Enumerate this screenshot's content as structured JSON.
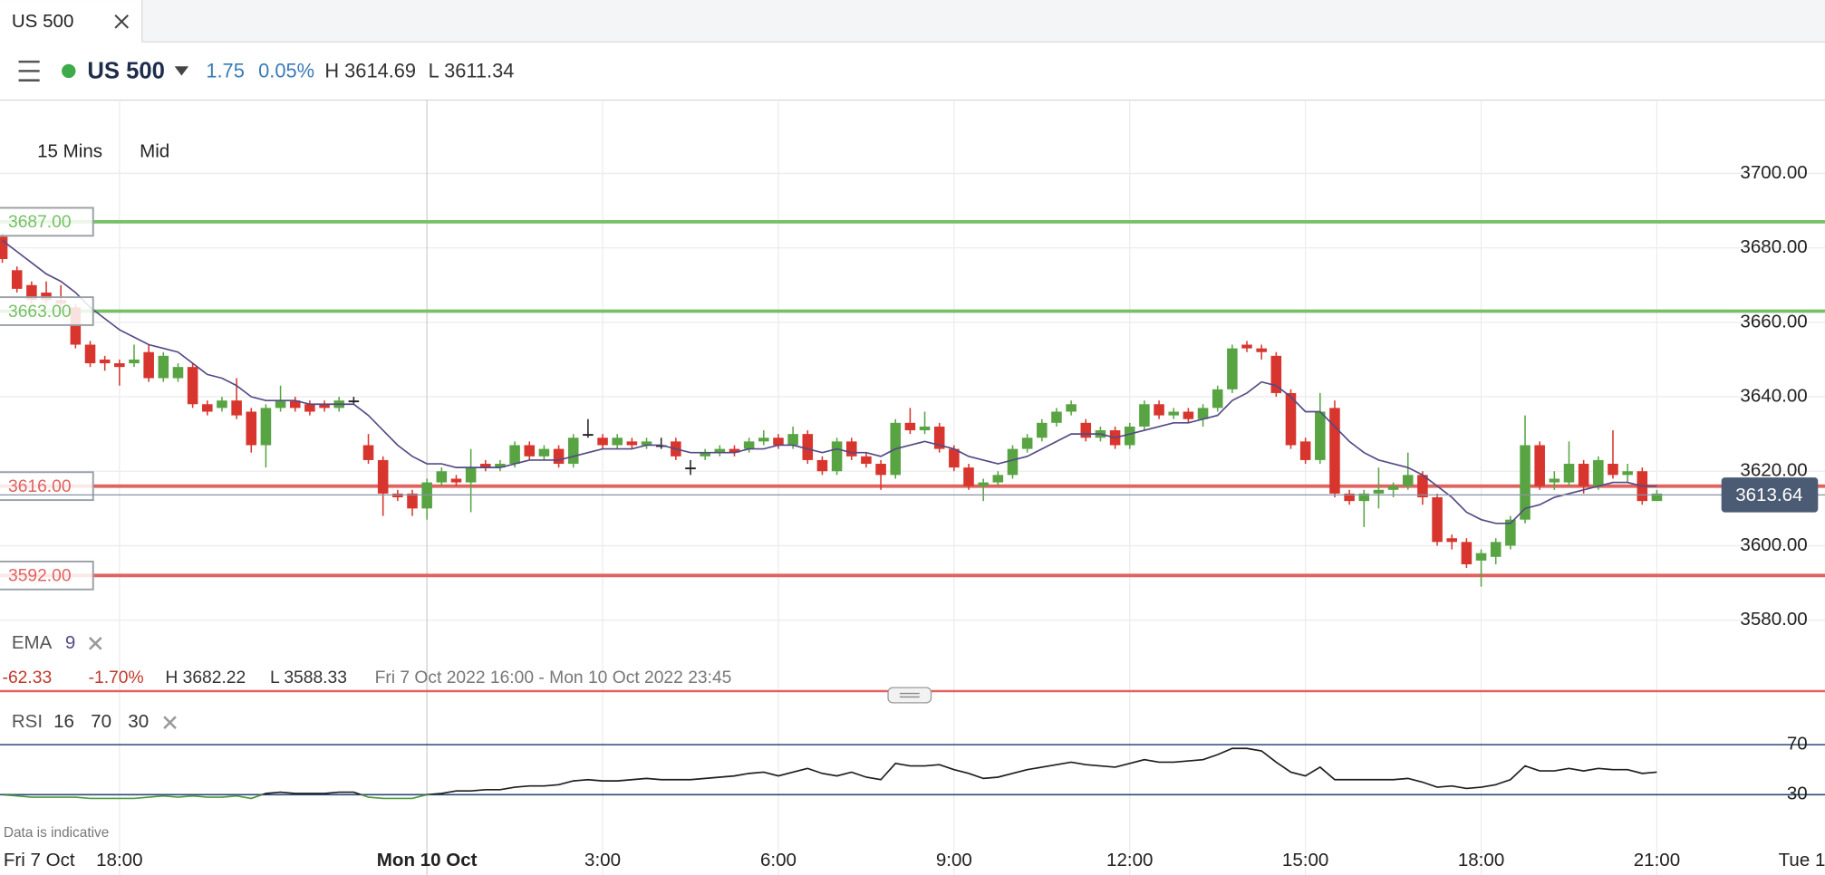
{
  "tab": {
    "title": "US 500"
  },
  "toolbar": {
    "instrument": "US 500",
    "change": "1.75",
    "change_pct": "0.05%",
    "high": "H 3614.69",
    "low": "L 3611.34"
  },
  "chart_data": {
    "type": "candlestick",
    "interval": "15 Mins",
    "price_type": "Mid",
    "categories": [
      "Fri 7 Oct",
      null,
      null,
      null,
      null,
      null,
      null,
      null,
      "18:00",
      null,
      null,
      null,
      null,
      null,
      null,
      null,
      null,
      null,
      null,
      null,
      null,
      null,
      null,
      null,
      null,
      null,
      null,
      null,
      null,
      "Mon 10 Oct",
      null,
      null,
      null,
      null,
      null,
      null,
      null,
      null,
      null,
      null,
      null,
      "3:00",
      null,
      null,
      null,
      null,
      null,
      null,
      null,
      null,
      null,
      null,
      null,
      "6:00",
      null,
      null,
      null,
      null,
      null,
      null,
      null,
      null,
      null,
      null,
      null,
      "9:00",
      null,
      null,
      null,
      null,
      null,
      null,
      null,
      null,
      null,
      null,
      null,
      "12:00",
      null,
      null,
      null,
      null,
      null,
      null,
      null,
      null,
      null,
      null,
      null,
      "15:00",
      null,
      null,
      null,
      null,
      null,
      null,
      null,
      null,
      null,
      null,
      null,
      "18:00",
      null,
      null,
      null,
      null,
      null,
      null,
      null,
      null,
      null,
      null,
      null,
      "21:00"
    ],
    "open": [
      3683,
      3674,
      3670,
      3668,
      3666,
      3664,
      3654,
      3650,
      3649,
      3649,
      3652,
      3645,
      3645,
      3648,
      3638,
      3637,
      3639,
      3636,
      3627,
      3637,
      3639,
      3638,
      3638,
      3637,
      3639,
      3627,
      3623,
      3614,
      3614,
      3610,
      3617,
      3618,
      3617,
      3622,
      3621,
      3622,
      3627,
      3624,
      3626,
      3622,
      3630,
      3629,
      3627,
      3628,
      3627,
      3627,
      3628,
      3621,
      3624,
      3625,
      3626,
      3626,
      3628,
      3629,
      3627,
      3630,
      3623,
      3620,
      3628,
      3624,
      3622,
      3619,
      3633,
      3631,
      3632,
      3626,
      3621,
      3616,
      3617,
      3619,
      3626,
      3629,
      3633,
      3636,
      3633,
      3629,
      3631,
      3627,
      3632,
      3638,
      3635,
      3636,
      3634,
      3637,
      3642,
      3654,
      3653,
      3651,
      3641,
      3628,
      3623,
      3637,
      3614,
      3612,
      3614,
      3615,
      3616,
      3619,
      3613,
      3602,
      3601,
      3596,
      3597,
      3600,
      3607,
      3627,
      3617,
      3617,
      3622,
      3616,
      3622,
      3619,
      3620,
      3612
    ],
    "high": [
      3684,
      3675,
      3671,
      3671,
      3670,
      3665,
      3655,
      3651,
      3650,
      3654,
      3654,
      3652,
      3649,
      3649,
      3639,
      3640,
      3645,
      3637,
      3638,
      3643,
      3640,
      3639,
      3639,
      3640,
      3640,
      3630,
      3624,
      3615,
      3615,
      3618,
      3621,
      3619,
      3626,
      3623,
      3623,
      3628,
      3628,
      3627,
      3627,
      3630,
      3634,
      3630,
      3630,
      3629,
      3629,
      3629,
      3629,
      3623,
      3626,
      3627,
      3627,
      3629,
      3631,
      3630,
      3632,
      3631,
      3624,
      3629,
      3629,
      3625,
      3623,
      3634,
      3637,
      3636,
      3633,
      3627,
      3622,
      3618,
      3620,
      3627,
      3630,
      3634,
      3637,
      3639,
      3634,
      3632,
      3632,
      3633,
      3639,
      3639,
      3637,
      3637,
      3638,
      3643,
      3654,
      3655,
      3654,
      3652,
      3642,
      3629,
      3641,
      3639,
      3615,
      3615,
      3621,
      3617,
      3625,
      3620,
      3614,
      3603,
      3602,
      3599,
      3602,
      3608,
      3635,
      3628,
      3620,
      3628,
      3623,
      3624,
      3631,
      3622,
      3621,
      3615
    ],
    "low": [
      3676,
      3668,
      3665,
      3665,
      3663,
      3653,
      3648,
      3647,
      3643,
      3648,
      3644,
      3644,
      3644,
      3637,
      3635,
      3636,
      3634,
      3625,
      3621,
      3636,
      3636,
      3635,
      3636,
      3636,
      3638,
      3622,
      3608,
      3612,
      3608,
      3607,
      3616,
      3616,
      3609,
      3620,
      3620,
      3621,
      3623,
      3623,
      3621,
      3621,
      3629,
      3626,
      3626,
      3626,
      3626,
      3626,
      3623,
      3619,
      3623,
      3624,
      3624,
      3625,
      3627,
      3626,
      3626,
      3622,
      3619,
      3619,
      3623,
      3621,
      3615,
      3618,
      3630,
      3630,
      3625,
      3620,
      3615,
      3612,
      3616,
      3618,
      3625,
      3628,
      3632,
      3635,
      3628,
      3628,
      3626,
      3626,
      3631,
      3634,
      3634,
      3633,
      3632,
      3636,
      3641,
      3652,
      3650,
      3640,
      3626,
      3622,
      3622,
      3613,
      3611,
      3605,
      3610,
      3613,
      3615,
      3611,
      3600,
      3599,
      3594,
      3589,
      3595,
      3599,
      3606,
      3615,
      3615,
      3616,
      3614,
      3615,
      3618,
      3617,
      3611,
      3612
    ],
    "close": [
      3677,
      3669,
      3666,
      3666,
      3665,
      3654,
      3649,
      3649,
      3648,
      3650,
      3645,
      3651,
      3648,
      3638,
      3636,
      3639,
      3635,
      3627,
      3637,
      3639,
      3637,
      3636,
      3637,
      3639,
      3639,
      3623,
      3614,
      3613,
      3610,
      3617,
      3620,
      3617,
      3621,
      3621,
      3622,
      3627,
      3624,
      3626,
      3622,
      3629,
      3630,
      3627,
      3629,
      3627,
      3628,
      3627,
      3624,
      3621,
      3625,
      3626,
      3625,
      3628,
      3629,
      3627,
      3630,
      3623,
      3620,
      3628,
      3624,
      3622,
      3619,
      3633,
      3631,
      3632,
      3626,
      3621,
      3616,
      3617,
      3619,
      3626,
      3629,
      3633,
      3636,
      3638,
      3629,
      3631,
      3627,
      3632,
      3638,
      3635,
      3636,
      3634,
      3637,
      3642,
      3653,
      3653,
      3652,
      3641,
      3627,
      3623,
      3636,
      3614,
      3612,
      3614,
      3615,
      3616,
      3619,
      3613,
      3601,
      3601,
      3595,
      3598,
      3601,
      3607,
      3627,
      3616,
      3618,
      3622,
      3616,
      3623,
      3619,
      3620,
      3612,
      3614
    ],
    "up_color": "#58a443",
    "down_color": "#d7352d",
    "flat_color": "#222222",
    "ylim": [
      3562,
      3720
    ],
    "yticks": [
      {
        "value": 3580,
        "label": "3580.00"
      },
      {
        "value": 3600,
        "label": "3600.00"
      },
      {
        "value": 3620,
        "label": "3620.00"
      },
      {
        "value": 3640,
        "label": "3640.00"
      },
      {
        "value": 3660,
        "label": "3660.00"
      },
      {
        "value": 3680,
        "label": "3680.00"
      },
      {
        "value": 3700,
        "label": "3700.00"
      }
    ],
    "grid": true,
    "levels": [
      {
        "value": 3687,
        "label": "3687.00",
        "color": "#76c066"
      },
      {
        "value": 3663,
        "label": "3663.00",
        "color": "#76c066"
      },
      {
        "value": 3616,
        "label": "3616.00",
        "color": "#e06360"
      },
      {
        "value": 3592,
        "label": "3592.00",
        "color": "#e06360"
      }
    ],
    "last_price": {
      "value": 3613.64,
      "label": "3613.64"
    },
    "ema": {
      "name": "EMA",
      "period": 9,
      "color": "#544a86",
      "values": [
        3682,
        3679,
        3676,
        3673,
        3671,
        3668,
        3664,
        3661,
        3658,
        3656,
        3654,
        3653,
        3652,
        3649,
        3646,
        3645,
        3643,
        3640,
        3639,
        3639,
        3639,
        3638,
        3638,
        3638,
        3638,
        3635,
        3631,
        3627,
        3624,
        3622,
        3622,
        3621,
        3621,
        3621,
        3621,
        3622,
        3623,
        3623,
        3623,
        3624,
        3625,
        3626,
        3626,
        3626,
        3627,
        3627,
        3626,
        3625,
        3625,
        3625,
        3625,
        3626,
        3626,
        3627,
        3627,
        3626,
        3625,
        3626,
        3625,
        3625,
        3624,
        3626,
        3627,
        3628,
        3627,
        3626,
        3624,
        3623,
        3622,
        3623,
        3624,
        3626,
        3628,
        3630,
        3630,
        3630,
        3629,
        3630,
        3631,
        3632,
        3633,
        3633,
        3634,
        3635,
        3639,
        3641,
        3644,
        3643,
        3640,
        3636,
        3636,
        3632,
        3628,
        3625,
        3623,
        3622,
        3621,
        3619,
        3616,
        3613,
        3609,
        3607,
        3606,
        3606,
        3610,
        3611,
        3613,
        3614,
        3615,
        3616,
        3617,
        3617,
        3616,
        3616
      ]
    },
    "summary": {
      "change": "-62.33",
      "change_pct": "-1.70%",
      "high": "H 3682.22",
      "low": "L 3588.33",
      "range": "Fri 7 Oct 2022 16:00 - Mon 10 Oct 2022 23:45"
    },
    "x_end_label": "Tue 1",
    "note": "Data is indicative"
  },
  "rsi": {
    "type": "line",
    "name": "RSI",
    "period": 16,
    "upper": 70,
    "lower": 30,
    "color": "#1e1e1e",
    "low_color": "#4f9a3e",
    "ylim": [
      0,
      100
    ],
    "yticks": [
      70,
      30
    ],
    "values": [
      30,
      29,
      28,
      28,
      28,
      28,
      27,
      27,
      27,
      27,
      28,
      29,
      28,
      29,
      28,
      28,
      29,
      27,
      31,
      32,
      31,
      31,
      31,
      32,
      32,
      28,
      27,
      27,
      27,
      30,
      31,
      33,
      33,
      34,
      34,
      36,
      37,
      37,
      38,
      41,
      42,
      41,
      41,
      42,
      43,
      42,
      42,
      42,
      43,
      44,
      45,
      47,
      48,
      45,
      48,
      51,
      47,
      45,
      48,
      44,
      42,
      55,
      53,
      53,
      54,
      50,
      47,
      43,
      44,
      47,
      50,
      52,
      54,
      56,
      54,
      53,
      52,
      55,
      58,
      56,
      56,
      57,
      58,
      62,
      67,
      67,
      65,
      56,
      48,
      45,
      52,
      42,
      42,
      42,
      42,
      42,
      43,
      40,
      36,
      37,
      35,
      36,
      38,
      42,
      53,
      49,
      49,
      51,
      49,
      51,
      50,
      50,
      47,
      48
    ]
  }
}
